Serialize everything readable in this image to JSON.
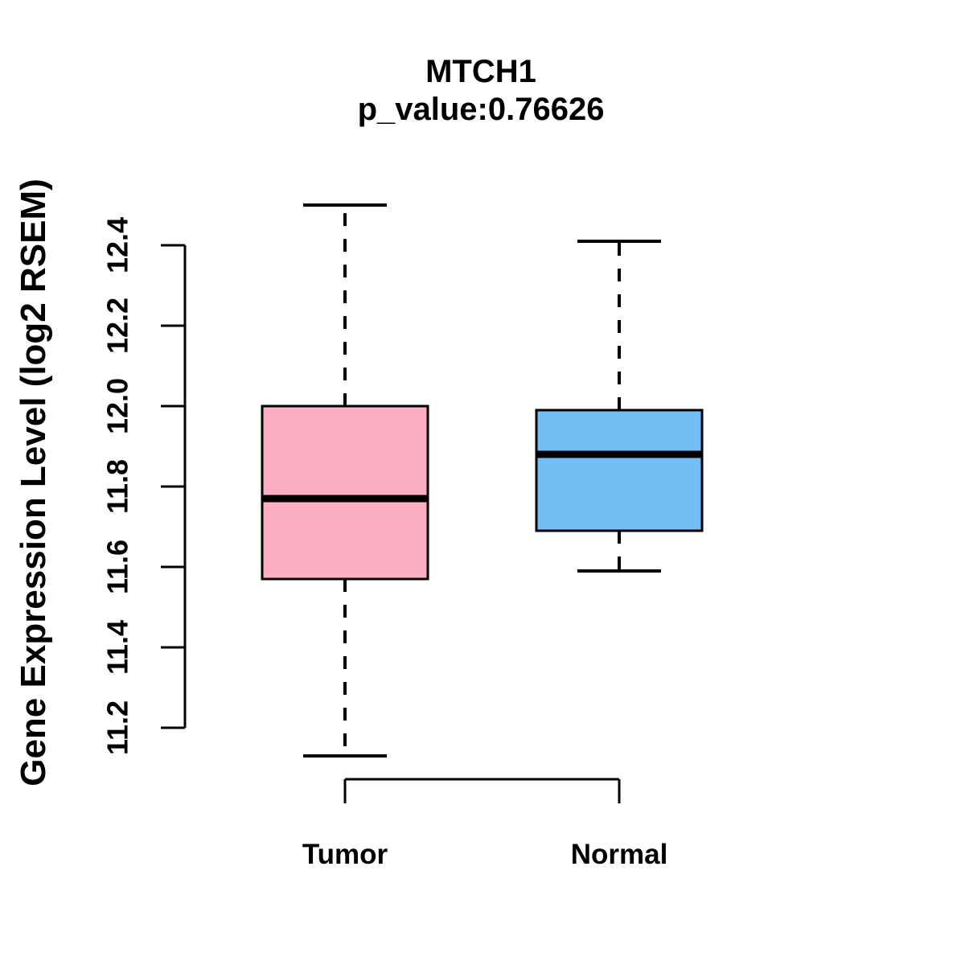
{
  "chart_data": {
    "type": "box",
    "title": "MTCH1",
    "subtitle": "p_value:0.76626",
    "ylabel": "Gene Expression Level (log2 RSEM)",
    "xlabel": "",
    "categories": [
      "Tumor",
      "Normal"
    ],
    "ylim": [
      11.2,
      12.4
    ],
    "ytick_labels": [
      "11.2",
      "11.4",
      "11.6",
      "11.8",
      "12.0",
      "12.2",
      "12.4"
    ],
    "grid": false,
    "legend_position": "none",
    "series": [
      {
        "name": "Tumor",
        "color": "#FCAEC3",
        "lower_whisker": 11.13,
        "q1": 11.57,
        "median": 11.77,
        "q3": 12.0,
        "upper_whisker": 12.5
      },
      {
        "name": "Normal",
        "color": "#74BEF5",
        "lower_whisker": 11.59,
        "q1": 11.69,
        "median": 11.88,
        "q3": 11.99,
        "upper_whisker": 12.41
      }
    ],
    "colors": {
      "box_border": "#000000",
      "median_line": "#000000",
      "axis": "#000000",
      "text": "#000000",
      "background": "#ffffff"
    }
  }
}
